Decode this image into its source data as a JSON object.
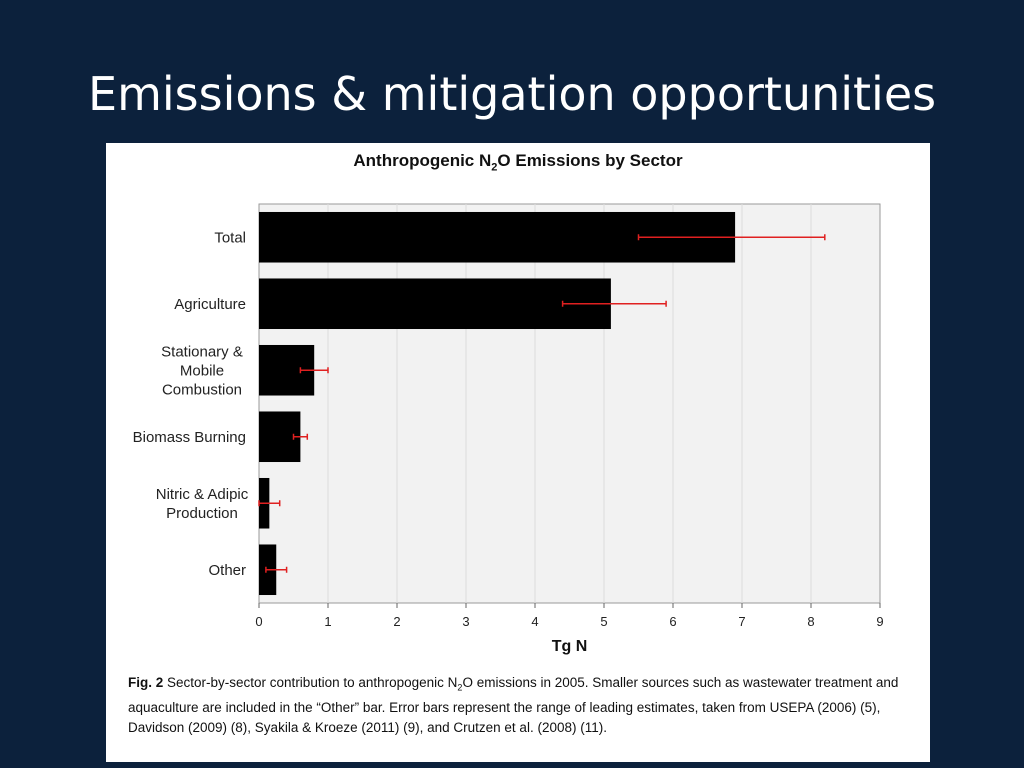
{
  "slide": {
    "title": "Emissions & mitigation opportunities"
  },
  "colors": {
    "background": "#0c213c",
    "bar": "#000000",
    "error_bar": "#e02020",
    "plot_area": "#f2f2f2"
  },
  "chart_data": {
    "type": "bar",
    "orientation": "horizontal",
    "title_prefix": "Anthropogenic N",
    "title_sub": "2",
    "title_suffix": "O Emissions by Sector",
    "xlabel": "Tg N",
    "xlim": [
      0,
      9
    ],
    "xticks": [
      0,
      1,
      2,
      3,
      4,
      5,
      6,
      7,
      8,
      9
    ],
    "grid": "vertical",
    "categories": [
      [
        "Total"
      ],
      [
        "Agriculture"
      ],
      [
        "Stationary &",
        "Mobile",
        "Combustion"
      ],
      [
        "Biomass Burning"
      ],
      [
        "Nitric & Adipic",
        "Production"
      ],
      [
        "Other"
      ]
    ],
    "values": [
      6.9,
      5.1,
      0.8,
      0.6,
      0.15,
      0.25
    ],
    "error_low": [
      5.5,
      4.4,
      0.6,
      0.5,
      0.0,
      0.1
    ],
    "error_high": [
      8.2,
      5.9,
      1.0,
      0.7,
      0.3,
      0.4
    ]
  },
  "caption": {
    "label": "Fig. 2",
    "part1": " Sector-by-sector contribution to anthropogenic N",
    "sub": "2",
    "part2": "O emissions in 2005. Smaller sources such as wastewater treatment and aquaculture are included in the “Other” bar. Error bars represent the range of leading estimates, taken from USEPA (2006) (5), Davidson (2009) (8), Syakila & Kroeze (2011) (9), and Crutzen et al. (2008) (11)."
  }
}
